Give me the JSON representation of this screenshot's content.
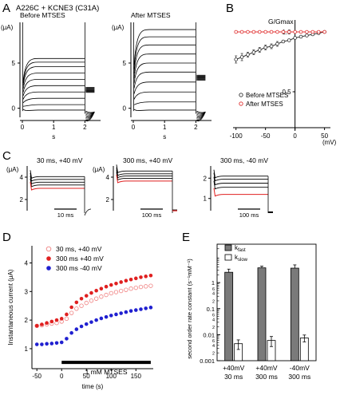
{
  "figure_title": "A226C + KCNE3 (C31A)",
  "chart_data": [
    {
      "panel": "A",
      "type": "line",
      "title": "A226C + KCNE3 (C31A)",
      "subpanels": [
        {
          "title": "Before MTSES",
          "ylabel": "(μA)",
          "xlabel": "s",
          "x_ticks": [
            "0",
            "1",
            "2"
          ],
          "y_ticks": [
            "0",
            "5"
          ],
          "ylim": [
            -1,
            9.5
          ],
          "xlim": [
            0,
            2.5
          ],
          "step_end_s": 2.0,
          "steady_currents": [
            -0.2,
            0.4,
            1.1,
            1.8,
            2.5,
            3.2,
            3.9,
            4.6,
            5.1,
            5.5
          ]
        },
        {
          "title": "After MTSES",
          "ylabel": "(μA)",
          "xlabel": "s",
          "x_ticks": [
            "0",
            "1",
            "2"
          ],
          "y_ticks": [
            "0",
            "5"
          ],
          "ylim": [
            -1,
            9.5
          ],
          "xlim": [
            0,
            2.5
          ],
          "step_end_s": 2.0,
          "steady_currents": [
            -0.2,
            0.7,
            1.8,
            2.9,
            4.0,
            5.0,
            6.0,
            7.0,
            7.9,
            8.7
          ]
        }
      ]
    },
    {
      "panel": "B",
      "type": "scatter",
      "ylabel": "G/Gmax",
      "xlabel": "(mV)",
      "x_ticks": [
        -100,
        -50,
        0,
        50
      ],
      "y_ticks": [
        0.5,
        1.0
      ],
      "y_tick_labels": [
        "0.5",
        "1.0"
      ],
      "xlim": [
        -105,
        60
      ],
      "ylim": [
        0.2,
        1.1
      ],
      "series": [
        {
          "name": "Before MTSES",
          "color": "#333333",
          "x": [
            -100,
            -90,
            -80,
            -70,
            -60,
            -50,
            -40,
            -30,
            -20,
            -10,
            0,
            10,
            20,
            30,
            40,
            50
          ],
          "y": [
            0.77,
            0.79,
            0.81,
            0.83,
            0.85,
            0.87,
            0.88,
            0.9,
            0.92,
            0.93,
            0.95,
            0.96,
            0.97,
            0.98,
            0.99,
            1.0
          ],
          "err": [
            0.03,
            0.03,
            0.02,
            0.02,
            0.02,
            0.02,
            0.02,
            0.02,
            0.01,
            0.01,
            0.01,
            0.01,
            0.01,
            0.01,
            0.01,
            0.01
          ]
        },
        {
          "name": "After MTSES",
          "color": "#e03030",
          "x": [
            -100,
            -90,
            -80,
            -70,
            -60,
            -50,
            -40,
            -30,
            -20,
            -10,
            0,
            10,
            20,
            30,
            40,
            50
          ],
          "y": [
            1.0,
            1.0,
            1.0,
            1.0,
            1.0,
            1.0,
            1.0,
            1.0,
            1.0,
            1.0,
            1.0,
            1.0,
            1.0,
            1.0,
            1.0,
            1.0
          ],
          "err": [
            0.01,
            0.01,
            0.01,
            0.01,
            0.01,
            0.01,
            0.01,
            0.01,
            0.01,
            0.01,
            0.01,
            0.01,
            0.01,
            0.01,
            0.01,
            0.01
          ]
        }
      ]
    },
    {
      "panel": "C",
      "type": "line",
      "ylabel": "(μA)",
      "subpanels": [
        {
          "title": "30 ms, +40 mV",
          "scalebar": "10 ms",
          "y_ticks": [
            "4",
            "2"
          ],
          "ylim": [
            1,
            5
          ],
          "levels_black": [
            3.3,
            3.55,
            3.8,
            4.05
          ],
          "level_red": 3.0
        },
        {
          "title": "300 ms, +40 mV",
          "scalebar": "100 ms",
          "y_ticks": [
            "4",
            "2"
          ],
          "ylim": [
            1,
            5
          ],
          "levels_black": [
            3.9,
            4.1,
            4.3,
            4.55
          ],
          "level_red": 3.65
        },
        {
          "title": "300 ms, -40 mV",
          "scalebar": "100 ms",
          "y_ticks": [
            "2",
            "1"
          ],
          "ylim": [
            0.4,
            2.6
          ],
          "levels_black": [
            1.55,
            1.75,
            1.95,
            2.1
          ],
          "level_red": 1.2
        }
      ]
    },
    {
      "panel": "D",
      "type": "scatter",
      "xlabel": "time (s)",
      "ylabel": "Instantaneous current (μA)",
      "x_ticks": [
        -50,
        0,
        50,
        100,
        150
      ],
      "y_ticks": [
        1,
        2,
        3,
        4
      ],
      "xlim": [
        -60,
        185
      ],
      "ylim": [
        0.3,
        4.6
      ],
      "annotation": "1 mM MTSES",
      "annotation_range": [
        0,
        180
      ],
      "series": [
        {
          "name": "30 ms, +40 mV",
          "color": "#f08080",
          "marker": "open",
          "x": [
            -50,
            -40,
            -30,
            -20,
            -10,
            0,
            10,
            20,
            30,
            40,
            50,
            60,
            70,
            80,
            90,
            100,
            110,
            120,
            130,
            140,
            150,
            160,
            170,
            180
          ],
          "y": [
            1.8,
            1.82,
            1.85,
            1.88,
            1.9,
            1.95,
            2.05,
            2.25,
            2.4,
            2.5,
            2.6,
            2.68,
            2.75,
            2.82,
            2.88,
            2.94,
            2.98,
            3.02,
            3.06,
            3.1,
            3.13,
            3.16,
            3.18,
            3.2
          ]
        },
        {
          "name": "300 ms +40 mV",
          "color": "#e02020",
          "marker": "filled",
          "x": [
            -50,
            -40,
            -30,
            -20,
            -10,
            0,
            10,
            20,
            30,
            40,
            50,
            60,
            70,
            80,
            90,
            100,
            110,
            120,
            130,
            140,
            150,
            160,
            170,
            180
          ],
          "y": [
            1.8,
            1.85,
            1.9,
            1.95,
            2.0,
            2.05,
            2.2,
            2.45,
            2.62,
            2.75,
            2.85,
            2.95,
            3.03,
            3.1,
            3.17,
            3.23,
            3.28,
            3.33,
            3.38,
            3.42,
            3.46,
            3.5,
            3.53,
            3.56
          ]
        },
        {
          "name": "300 ms -40 mV",
          "color": "#2020d0",
          "marker": "filled",
          "x": [
            -50,
            -40,
            -30,
            -20,
            -10,
            0,
            10,
            20,
            30,
            40,
            50,
            60,
            70,
            80,
            90,
            100,
            110,
            120,
            130,
            140,
            150,
            160,
            170,
            180
          ],
          "y": [
            1.15,
            1.15,
            1.17,
            1.18,
            1.2,
            1.22,
            1.35,
            1.55,
            1.68,
            1.78,
            1.86,
            1.93,
            2.0,
            2.06,
            2.11,
            2.16,
            2.2,
            2.24,
            2.28,
            2.32,
            2.35,
            2.38,
            2.41,
            2.44
          ]
        }
      ]
    },
    {
      "panel": "E",
      "type": "bar",
      "ylabel": "second order rate constant (s⁻¹mM⁻¹)",
      "yscale": "log",
      "y_ticks": [
        0.001,
        0.01,
        0.1,
        1
      ],
      "y_tick_labels": [
        "0.001",
        "0.01",
        "0.1",
        "1"
      ],
      "ylim": [
        0.001,
        30
      ],
      "categories": [
        "+40mV 30 ms",
        "+40mV 300 ms",
        "-40mV 300 ms"
      ],
      "category_lines": [
        [
          "+40mV",
          "30 ms"
        ],
        [
          "+40mV",
          "300 ms"
        ],
        [
          "-40mV",
          "300 ms"
        ]
      ],
      "series": [
        {
          "name": "k_fast",
          "label_main": "k",
          "label_sub": "fast",
          "color": "#7a7a7a",
          "values": [
            2.5,
            3.7,
            3.6
          ],
          "err": [
            0.8,
            0.6,
            1.2
          ]
        },
        {
          "name": "k_slow",
          "label_main": "k",
          "label_sub": "slow",
          "color": "#ffffff",
          "values": [
            0.0045,
            0.006,
            0.0075
          ],
          "err": [
            0.0018,
            0.0025,
            0.0022
          ]
        }
      ]
    }
  ]
}
